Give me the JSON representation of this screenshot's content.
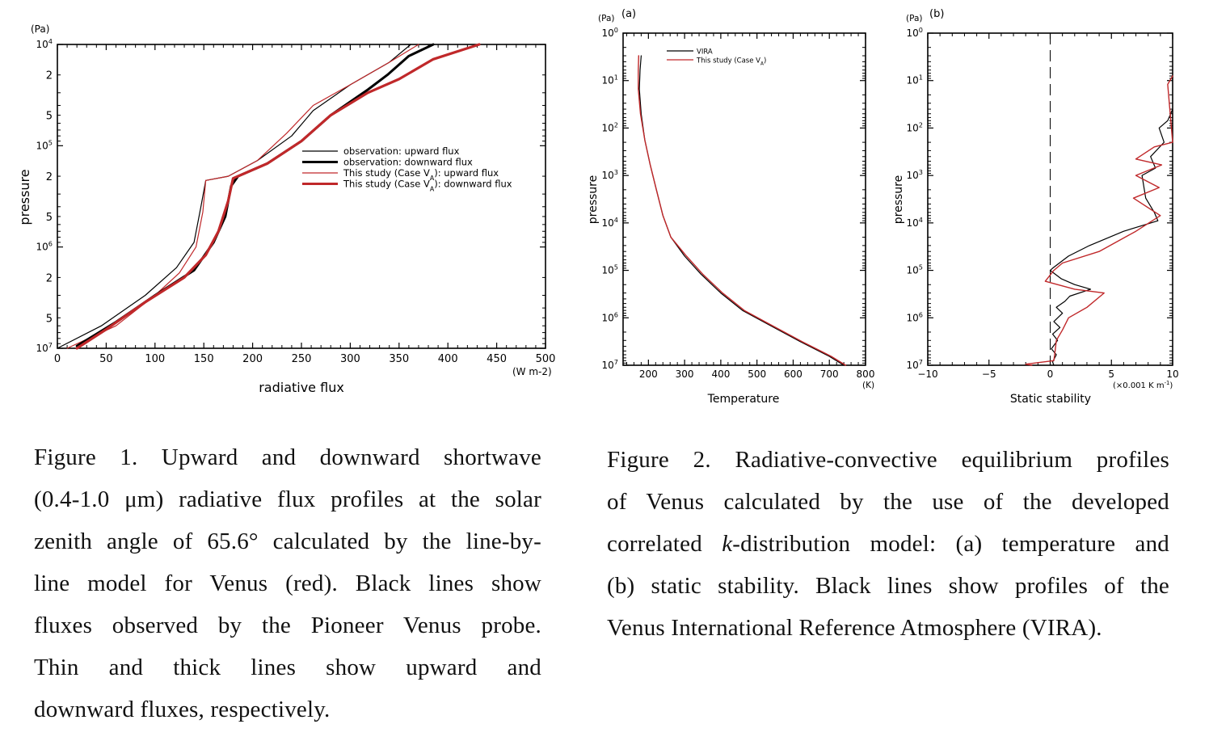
{
  "figure1": {
    "ylabel": "pressure",
    "yunit": "(Pa)",
    "xlabel": "radiative flux",
    "xunit": "(W m-2)",
    "x_ticks": [
      "0",
      "50",
      "100",
      "150",
      "200",
      "250",
      "300",
      "350",
      "400",
      "450",
      "500"
    ],
    "y_decades": [
      "10^4",
      "10^5",
      "10^6",
      "10^7"
    ],
    "y_minor_labels": [
      "2",
      "5"
    ],
    "legend": [
      "observation: upward flux",
      "observation: downward flux",
      "This study (Case V_A): upward flux",
      "This study (Case V_A): downward flux"
    ]
  },
  "figure2a": {
    "panel": "(a)",
    "ylabel": "pressure",
    "yunit": "(Pa)",
    "xlabel": "Temperature",
    "xunit": "(K)",
    "x_ticks": [
      "200",
      "300",
      "400",
      "500",
      "600",
      "700",
      "800"
    ],
    "y_decades": [
      "10^0",
      "10^1",
      "10^2",
      "10^3",
      "10^4",
      "10^5",
      "10^6",
      "10^7"
    ],
    "legend": [
      "VIRA",
      "This study (Case V_A)"
    ]
  },
  "figure2b": {
    "panel": "(b)",
    "ylabel": "pressure",
    "yunit": "(Pa)",
    "xlabel": "Static stability",
    "xunit": "(×0.001 K m^-1)",
    "x_ticks": [
      "−10",
      "−5",
      "0",
      "5",
      "10"
    ]
  },
  "colors": {
    "observation": "#000000",
    "model": "#c0282a"
  },
  "chart_data": [
    {
      "type": "line",
      "id": "fig1",
      "xlabel": "radiative flux",
      "ylabel": "pressure",
      "xlim": [
        0,
        500
      ],
      "ylim": [
        10000,
        10000000
      ],
      "y_scale": "log",
      "y_inverted": true,
      "legend_position": "center-right",
      "series": [
        {
          "name": "observation: upward flux",
          "style": "thin",
          "color": "#000000",
          "x": [
            362,
            340,
            300,
            262,
            240,
            205,
            175,
            152,
            147,
            140,
            122,
            90,
            45,
            0
          ],
          "y": [
            10000,
            15000,
            25000,
            45000,
            80000,
            140000,
            200000,
            220000,
            400000,
            900000,
            1600000,
            3000000,
            6000000,
            10000000
          ]
        },
        {
          "name": "observation: downward flux",
          "style": "thick",
          "color": "#000000",
          "x": [
            385,
            360,
            338,
            318,
            280,
            250,
            215,
            185,
            178,
            172,
            160,
            140,
            100,
            60,
            20
          ],
          "y": [
            10000,
            13000,
            20000,
            28000,
            50000,
            90000,
            150000,
            200000,
            250000,
            500000,
            900000,
            1700000,
            3000000,
            5500000,
            9500000
          ]
        },
        {
          "name": "This study (Case V_A): upward flux",
          "style": "thin",
          "color": "#c0282a",
          "x": [
            370,
            340,
            300,
            262,
            235,
            205,
            175,
            152,
            149,
            142,
            125,
            100,
            60,
            10
          ],
          "y": [
            10000,
            15000,
            25000,
            40000,
            75000,
            140000,
            200000,
            220000,
            450000,
            1000000,
            1800000,
            3000000,
            6000000,
            10000000
          ]
        },
        {
          "name": "This study (Case V_A): downward flux",
          "style": "thick",
          "color": "#c0282a",
          "x": [
            432,
            385,
            350,
            318,
            280,
            250,
            215,
            180,
            175,
            165,
            152,
            130,
            90,
            50,
            20
          ],
          "y": [
            10000,
            14000,
            22000,
            30000,
            50000,
            90000,
            150000,
            210000,
            350000,
            700000,
            1200000,
            2000000,
            3500000,
            6500000,
            10000000
          ]
        }
      ]
    },
    {
      "type": "line",
      "id": "fig2a",
      "xlabel": "Temperature",
      "ylabel": "pressure",
      "xlim": [
        130,
        800
      ],
      "ylim": [
        1,
        10000000
      ],
      "y_scale": "log",
      "y_inverted": true,
      "legend_position": "top-left",
      "series": [
        {
          "name": "VIRA",
          "color": "#000000",
          "x": [
            180,
            177,
            175,
            180,
            190,
            205,
            222,
            240,
            262,
            300,
            345,
            400,
            460,
            540,
            620,
            700,
            740
          ],
          "y": [
            3,
            6,
            15,
            50,
            180,
            600,
            2000,
            7000,
            20000,
            50000,
            120000,
            300000,
            700000,
            1500000,
            3200000,
            6500000,
            10000000
          ]
        },
        {
          "name": "This study (Case V_A)",
          "color": "#c0282a",
          "x": [
            173,
            172,
            172,
            178,
            190,
            205,
            222,
            240,
            262,
            305,
            350,
            405,
            465,
            545,
            625,
            705,
            745
          ],
          "y": [
            3,
            6,
            15,
            50,
            180,
            600,
            2000,
            7000,
            20000,
            50000,
            120000,
            300000,
            700000,
            1500000,
            3200000,
            6500000,
            10000000
          ]
        }
      ]
    },
    {
      "type": "line",
      "id": "fig2b",
      "xlabel": "Static stability",
      "ylabel": "pressure",
      "xlim": [
        -10,
        10
      ],
      "ylim": [
        1,
        10000000
      ],
      "y_scale": "log",
      "y_inverted": true,
      "series": [
        {
          "name": "VIRA",
          "color": "#000000",
          "x": [
            10,
            9.6,
            8.9,
            9.3,
            8.2,
            8.6,
            7.5,
            7.8,
            8.5,
            8.8,
            6.0,
            3.2,
            1.5,
            0.2,
            0,
            0.9,
            2.0,
            3.3,
            1.6,
            1.2,
            0.5,
            1.0,
            0.3,
            0.8,
            0.2,
            0.6,
            0.1,
            0.5,
            0.2,
            0.3
          ],
          "y": [
            40,
            70,
            100,
            200,
            400,
            700,
            1000,
            3000,
            6000,
            9000,
            15000,
            30000,
            50000,
            90000,
            100000,
            150000,
            200000,
            250000,
            350000,
            450000,
            600000,
            800000,
            1200000,
            1600000,
            2200000,
            3000000,
            4500000,
            6000000,
            8500000,
            10000000
          ]
        },
        {
          "name": "This study (Case V_A)",
          "color": "#c0282a",
          "x": [
            10,
            9.6,
            10,
            8.5,
            7.0,
            9.1,
            7.0,
            8.9,
            6.8,
            9.0,
            7.0,
            4.0,
            1.0,
            0.3,
            -0.4,
            2.0,
            4.4,
            3.0,
            1.5,
            1.0,
            0.5,
            0.4,
            0.3,
            -2.0,
            -1.5
          ],
          "y": [
            8,
            12,
            200,
            250,
            450,
            600,
            1000,
            1800,
            3000,
            7000,
            15000,
            40000,
            70000,
            100000,
            170000,
            250000,
            300000,
            600000,
            1000000,
            1800000,
            3000000,
            5000000,
            8000000,
            9500000,
            10000000
          ]
        }
      ]
    }
  ],
  "caption1": {
    "lines": [
      "Figure 1. Upward and downward shortwave",
      "(0.4-1.0 μm) radiative flux profiles at the solar",
      "zenith angle of 65.6° calculated by the line-by-",
      "line model for Venus (red). Black lines show",
      "fluxes observed by the Pioneer Venus probe.",
      "Thin and thick lines show upward and",
      "downward fluxes, respectively."
    ]
  },
  "caption2": {
    "line1": "Figure 2. Radiative-convective equilibrium profiles",
    "line2": "of Venus calculated by the use of the developed",
    "line3_pre": "correlated ",
    "line3_k": "k",
    "line3_post": "-distribution model: (a) temperature and",
    "line4": "(b) static stability. Black lines show profiles of the",
    "line5": "Venus International Reference Atmosphere (VIRA)."
  }
}
